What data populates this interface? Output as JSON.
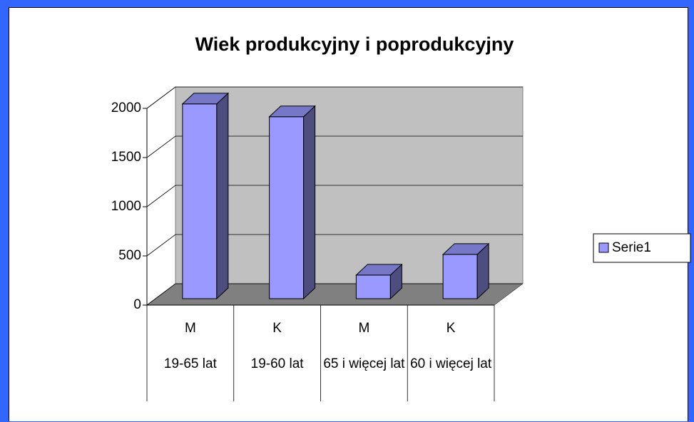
{
  "chart_data": {
    "type": "bar",
    "title": "Wiek produkcyjny i poprodukcyjny",
    "categories": [
      "M",
      "K",
      "M",
      "K"
    ],
    "category_groups": [
      "19-65 lat",
      "19-60 lat",
      "65 i więcej lat",
      "60 i więcej lat"
    ],
    "series": [
      {
        "name": "Serie1",
        "color": "#9999ff",
        "values": [
          1980,
          1850,
          240,
          450
        ]
      }
    ],
    "ylim": [
      0,
      2000
    ],
    "yticks": [
      0,
      500,
      1000,
      1500,
      2000
    ],
    "grid": true,
    "legend": "right"
  }
}
